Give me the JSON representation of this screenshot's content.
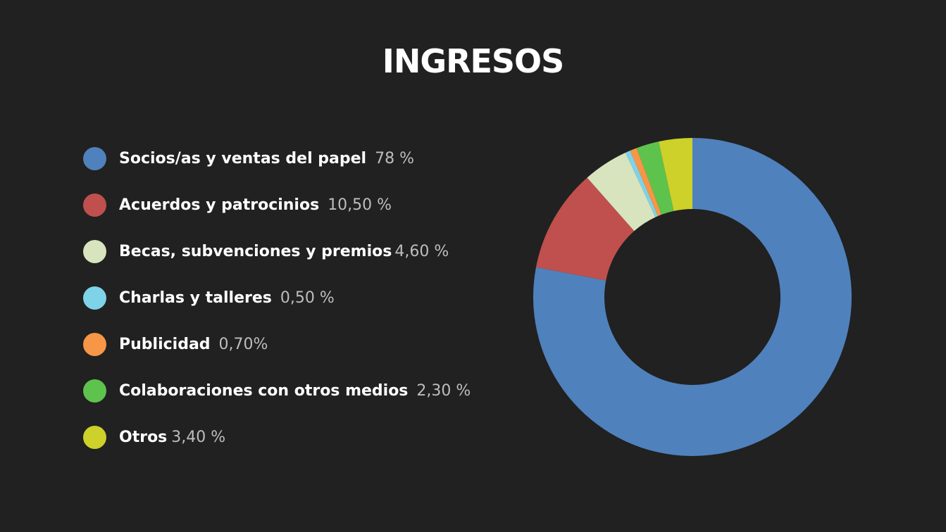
{
  "title": "INGRESOS",
  "chart_data": {
    "type": "pie",
    "donut": true,
    "title": "INGRESOS",
    "legend_position": "left",
    "slices": [
      {
        "label": "Socios/as y ventas del papel",
        "value": 78,
        "value_label": "78 %",
        "color": "#4F81BD"
      },
      {
        "label": "Acuerdos y patrocinios",
        "value": 10.5,
        "value_label": "10,50 %",
        "color": "#C0504D"
      },
      {
        "label": "Becas, subvenciones y premios",
        "value": 4.6,
        "value_label": "4,60 %",
        "color": "#D7E4BD"
      },
      {
        "label": "Charlas y talleres",
        "value": 0.5,
        "value_label": "0,50 %",
        "color": "#7FD3E8"
      },
      {
        "label": "Publicidad",
        "value": 0.7,
        "value_label": "0,70%",
        "color": "#F79646"
      },
      {
        "label": "Colaboraciones con otros medios",
        "value": 2.3,
        "value_label": "2,30 %",
        "color": "#5EC34D"
      },
      {
        "label": "Otros",
        "value": 3.4,
        "value_label": "3,40 %",
        "color": "#CDD12A"
      }
    ]
  }
}
